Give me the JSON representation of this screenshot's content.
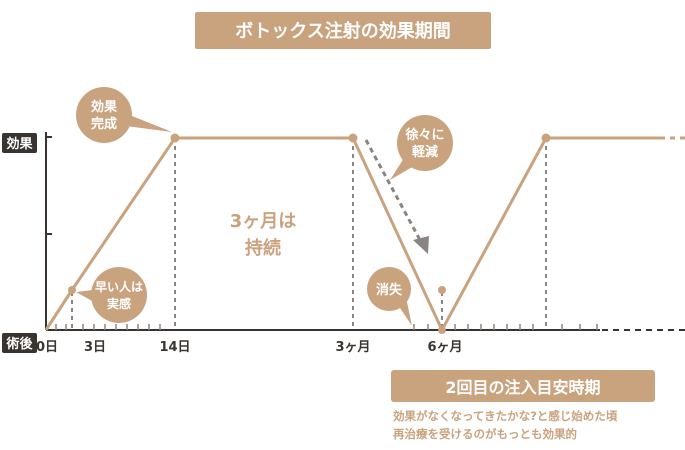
{
  "title": "ボトックス注射の効果期間",
  "axis": {
    "y_top_label": "効果",
    "y_bottom_label": "術後",
    "ticks": [
      "0日",
      "3日",
      "14日",
      "3ヶ月",
      "6ヶ月"
    ]
  },
  "annotations": {
    "complete": [
      "効果",
      "完成"
    ],
    "early": [
      "早い人は",
      "実感"
    ],
    "lasts": [
      "3ヶ月は",
      "持続"
    ],
    "fades": [
      "徐々に",
      "軽減"
    ],
    "gone": "消失"
  },
  "next_injection": {
    "title": "2回目の注入目安時期",
    "lines": [
      "効果がなくなってきたかな?と感じ始めた頃",
      "再治療を受けるのがもっとも効果的"
    ]
  },
  "colors": {
    "accent": "#c9a27e",
    "dark": "#3a3431",
    "grid": "#8a8583"
  }
}
